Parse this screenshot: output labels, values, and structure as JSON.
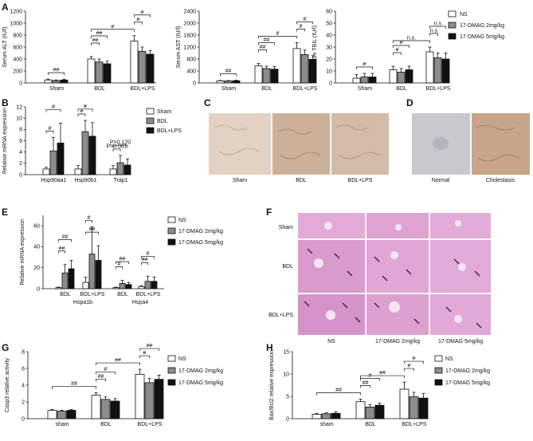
{
  "colors": {
    "ns": "#ffffff",
    "low": "#8c8c8c",
    "high": "#111111",
    "he_bg": "#e6b0dc",
    "ihc_bg": "#d8c3b3",
    "ihc_normal": "#c9c8cf"
  },
  "panels": [
    {
      "letter": "A"
    },
    {
      "letter": "B"
    },
    {
      "letter": "C"
    },
    {
      "letter": "D"
    },
    {
      "letter": "E"
    },
    {
      "letter": "F"
    },
    {
      "letter": "G"
    },
    {
      "letter": "H"
    }
  ],
  "legend_dmag": [
    "NS",
    "17-DMAG 2mg/kg",
    "17-DMAG 5mg/kg"
  ],
  "legend_B": [
    "Sham",
    "BDL",
    "BDL+LPS"
  ],
  "chart_data": [
    {
      "id": "A1",
      "type": "bar",
      "ylabel": "Serum ALT (IU/l)",
      "categories": [
        "Sham",
        "BDL",
        "BDL+LPS"
      ],
      "series": [
        {
          "name": "NS",
          "values": [
            50,
            400,
            700
          ],
          "err": [
            15,
            40,
            90
          ]
        },
        {
          "name": "17-DMAG 2mg/kg",
          "values": [
            40,
            350,
            530
          ],
          "err": [
            10,
            50,
            70
          ]
        },
        {
          "name": "17-DMAG 5mg/kg",
          "values": [
            48,
            320,
            480
          ],
          "err": [
            15,
            45,
            60
          ]
        }
      ],
      "yticks": [
        0,
        200,
        400,
        600,
        800,
        1000,
        1200
      ],
      "ylim": [
        0,
        1200
      ],
      "annotations": [
        {
          "g": [
            0,
            2
          ],
          "text": "##"
        },
        {
          "g": [
            1,
            1
          ],
          "text": "##"
        },
        {
          "g": [
            1,
            2
          ],
          "text": "##"
        },
        {
          "g": [
            2,
            0
          ],
          "text": "#"
        },
        {
          "g": [
            3,
            4
          ],
          "text": "#"
        },
        {
          "g": [
            5,
            6
          ],
          "text": "#"
        }
      ]
    },
    {
      "id": "A2",
      "type": "bar",
      "ylabel": "Serum AST (IU/l)",
      "categories": [
        "Sham",
        "BDL",
        "BDL+LPS"
      ],
      "series": [
        {
          "name": "NS",
          "values": [
            70,
            570,
            1150
          ],
          "err": [
            15,
            80,
            200
          ]
        },
        {
          "name": "17-DMAG 2mg/kg",
          "values": [
            65,
            480,
            950
          ],
          "err": [
            15,
            80,
            150
          ]
        },
        {
          "name": "17-DMAG 5mg/kg",
          "values": [
            75,
            460,
            790
          ],
          "err": [
            15,
            90,
            120
          ]
        }
      ],
      "yticks": [
        0,
        400,
        800,
        1200,
        1600,
        2000,
        2400
      ],
      "ylim": [
        0,
        2400
      ],
      "annotations": [
        {
          "g": [
            0,
            2
          ],
          "text": "##"
        },
        {
          "g": [
            1,
            1
          ],
          "text": "##"
        },
        {
          "g": [
            1,
            2
          ],
          "text": "##"
        },
        {
          "g": [
            2,
            0
          ],
          "text": "#"
        },
        {
          "g": [
            3,
            4
          ],
          "text": "#"
        },
        {
          "g": [
            5,
            6
          ],
          "text": "#"
        }
      ]
    },
    {
      "id": "A3",
      "type": "bar",
      "ylabel": "Serum TBIL (IU/l)",
      "categories": [
        "Sham",
        "BDL",
        "BDL+LPS"
      ],
      "series": [
        {
          "name": "NS",
          "values": [
            4,
            11,
            26
          ],
          "err": [
            3,
            3,
            4
          ]
        },
        {
          "name": "17-DMAG 2mg/kg",
          "values": [
            5,
            9,
            21
          ],
          "err": [
            3,
            3,
            4
          ]
        },
        {
          "name": "17-DMAG 5mg/kg",
          "values": [
            5,
            11,
            20
          ],
          "err": [
            3,
            3,
            5
          ]
        }
      ],
      "yticks": [
        0,
        10,
        20,
        30,
        40,
        50,
        60
      ],
      "ylim": [
        0,
        60
      ],
      "annotations": [
        {
          "g": [
            0,
            2
          ],
          "text": "#"
        },
        {
          "g": [
            1,
            1
          ],
          "text": "#"
        },
        {
          "g": [
            1,
            2
          ],
          "text": "#"
        },
        {
          "g": [
            2,
            0
          ],
          "text": "n.s"
        },
        {
          "g": [
            3,
            4
          ],
          "text": "n.s"
        },
        {
          "g": [
            5,
            6
          ],
          "text": "n.s."
        },
        {
          "g": [
            7,
            8
          ],
          "text": "n.s"
        }
      ]
    },
    {
      "id": "B",
      "type": "bar",
      "ylabel": "Relative mRNA expression",
      "categories": [
        "Hsp90aa1",
        "Hsp90b1",
        "Trap1"
      ],
      "series": [
        {
          "name": "Sham",
          "values": [
            1,
            1,
            1
          ],
          "err": [
            0.3,
            0.6,
            0.6
          ]
        },
        {
          "name": "BDL",
          "values": [
            4.2,
            7.6,
            2.1
          ],
          "err": [
            2.4,
            2.0,
            1.3
          ]
        },
        {
          "name": "BDL+LPS",
          "values": [
            5.6,
            6.8,
            1.7
          ],
          "err": [
            3.5,
            2.4,
            1.1
          ]
        }
      ],
      "yticks": [
        0,
        2,
        4,
        6,
        8,
        10,
        12
      ],
      "ylim": [
        0,
        12
      ],
      "annotations": [
        {
          "text": "#"
        },
        {
          "text": "#"
        },
        {
          "text": "#"
        },
        {
          "text": "#"
        },
        {
          "text": "P=0.120"
        },
        {
          "text": "P=0.061"
        }
      ]
    },
    {
      "id": "E",
      "type": "bar",
      "ylabel": "Relative mRNA expression",
      "categories": [
        "BDL",
        "BDL+LPS",
        "BDL",
        "BDL+LPS"
      ],
      "groups": [
        "Hspa1b",
        "Hspa4"
      ],
      "series": [
        {
          "name": "NS",
          "values": [
            1,
            6,
            1,
            2
          ],
          "err": [
            0.5,
            5,
            0.5,
            1
          ]
        },
        {
          "name": "17-DMAG 2mg/kg",
          "values": [
            15,
            33,
            5,
            7
          ],
          "err": [
            8,
            26,
            3,
            5
          ]
        },
        {
          "name": "17-DMAG 5mg/kg",
          "values": [
            19,
            27,
            4,
            7
          ],
          "err": [
            8,
            14,
            2,
            4
          ]
        }
      ],
      "yticks": [
        0,
        20,
        40,
        60
      ],
      "ylim": [
        0,
        70
      ],
      "annotations": [
        {
          "text": "##"
        },
        {
          "text": "##"
        },
        {
          "text": "#"
        },
        {
          "text": "##"
        },
        {
          "text": "#"
        },
        {
          "text": "##"
        },
        {
          "text": "##"
        },
        {
          "text": "#"
        },
        {
          "text": "#"
        },
        {
          "text": "#"
        },
        {
          "text": "#"
        }
      ]
    },
    {
      "id": "G",
      "type": "bar",
      "ylabel": "Casp3 relative activity",
      "categories": [
        "sham",
        "BDL",
        "BDL+LPS"
      ],
      "series": [
        {
          "name": "NS",
          "values": [
            1.0,
            2.8,
            5.3
          ],
          "err": [
            0.1,
            0.3,
            0.6
          ]
        },
        {
          "name": "17-DMAG 2mg/kg",
          "values": [
            0.9,
            2.3,
            4.3
          ],
          "err": [
            0.1,
            0.3,
            0.5
          ]
        },
        {
          "name": "17-DMAG 5mg/kg",
          "values": [
            1.0,
            2.1,
            4.7
          ],
          "err": [
            0.1,
            0.3,
            0.5
          ]
        }
      ],
      "yticks": [
        0,
        2,
        4,
        6,
        8
      ],
      "ylim": [
        0,
        8
      ],
      "annotations": [
        {
          "text": "##"
        },
        {
          "text": "##"
        },
        {
          "text": "#"
        },
        {
          "text": "##"
        },
        {
          "text": "#"
        },
        {
          "text": "##"
        },
        {
          "text": "#"
        }
      ]
    },
    {
      "id": "H",
      "type": "bar",
      "ylabel": "Bax/Bcl2 relative expression",
      "categories": [
        "sham",
        "BDL",
        "BDL+LPS"
      ],
      "series": [
        {
          "name": "NS",
          "values": [
            1.0,
            3.8,
            6.6
          ],
          "err": [
            0.2,
            0.6,
            1.6
          ]
        },
        {
          "name": "17-DMAG 2mg/kg",
          "values": [
            1.1,
            2.6,
            4.9
          ],
          "err": [
            0.2,
            0.5,
            1.0
          ]
        },
        {
          "name": "17-DMAG 5mg/kg",
          "values": [
            1.2,
            3.0,
            4.6
          ],
          "err": [
            0.3,
            0.5,
            1.0
          ]
        }
      ],
      "yticks": [
        0,
        5,
        10,
        15
      ],
      "ylim": [
        0,
        15
      ],
      "annotations": [
        {
          "text": "##"
        },
        {
          "text": "##"
        },
        {
          "text": "#"
        },
        {
          "text": "##"
        },
        {
          "text": "#"
        },
        {
          "text": "#"
        }
      ]
    }
  ],
  "panel_C": {
    "labels": [
      "Sham",
      "BDL",
      "BDL+LPS"
    ]
  },
  "panel_D": {
    "labels": [
      "Normal",
      "Cholestasis"
    ]
  },
  "panel_F": {
    "rows": [
      "Sham",
      "BDL",
      "BDL+LPS"
    ],
    "cols": [
      "NS",
      "17-DMAG 2mg/kg",
      "17-DMAG 5mg/kg"
    ]
  }
}
